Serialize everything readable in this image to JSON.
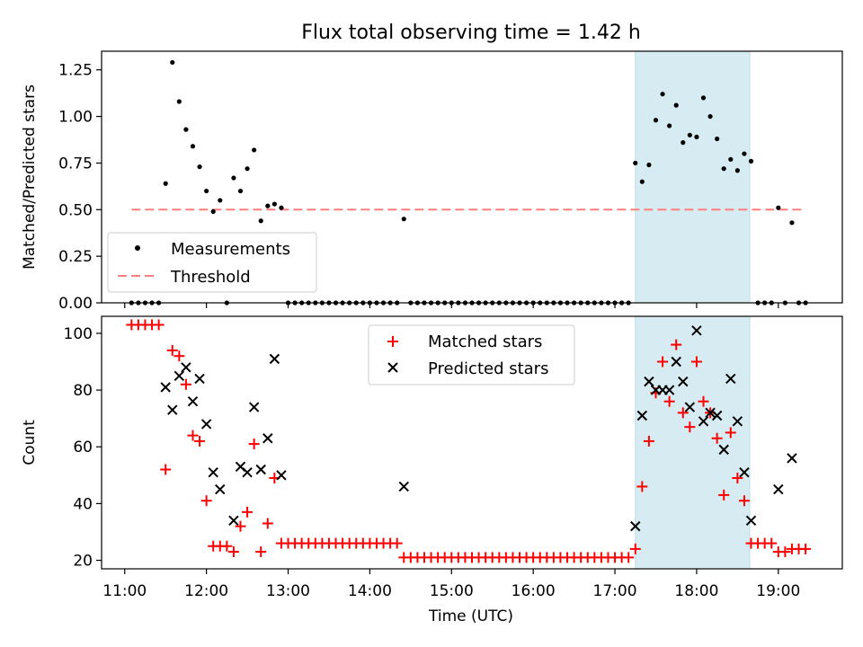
{
  "title": "Flux total observing time = 1.42 h",
  "chart_data": [
    {
      "type": "scatter",
      "title": "Flux total observing time = 1.42 h",
      "xlabel": "",
      "ylabel": "Matched/Predicted stars",
      "xlim": [
        "10:43",
        "19:47"
      ],
      "ylim": [
        0,
        1.35
      ],
      "xticks": [
        "11:00",
        "12:00",
        "13:00",
        "14:00",
        "15:00",
        "16:00",
        "17:00",
        "18:00",
        "19:00"
      ],
      "yticks": [
        "0.00",
        "0.25",
        "0.50",
        "0.75",
        "1.00",
        "1.25"
      ],
      "highlight_span": [
        "17:15",
        "18:39"
      ],
      "legend": {
        "position": "lower-left",
        "entries": [
          "Measurements",
          "Threshold"
        ]
      },
      "threshold": {
        "name": "Threshold",
        "y": 0.5,
        "x": [
          "11:05",
          "19:20"
        ],
        "color": "#ff7f7f",
        "style": "dashed"
      },
      "series": [
        {
          "name": "Measurements",
          "color": "#000000",
          "marker": "dot",
          "points": [
            [
              "11:05",
              0
            ],
            [
              "11:10",
              0
            ],
            [
              "11:15",
              0
            ],
            [
              "11:20",
              0
            ],
            [
              "11:25",
              0
            ],
            [
              "11:30",
              0.64
            ],
            [
              "11:35",
              1.29
            ],
            [
              "11:40",
              1.08
            ],
            [
              "11:45",
              0.93
            ],
            [
              "11:50",
              0.84
            ],
            [
              "11:55",
              0.73
            ],
            [
              "12:00",
              0.6
            ],
            [
              "12:05",
              0.49
            ],
            [
              "12:10",
              0.55
            ],
            [
              "12:15",
              0
            ],
            [
              "12:20",
              0.67
            ],
            [
              "12:25",
              0.6
            ],
            [
              "12:30",
              0.72
            ],
            [
              "12:35",
              0.82
            ],
            [
              "12:40",
              0.44
            ],
            [
              "12:45",
              0.52
            ],
            [
              "12:50",
              0.53
            ],
            [
              "12:55",
              0.51
            ],
            [
              "13:00",
              0
            ],
            [
              "13:05",
              0
            ],
            [
              "13:10",
              0
            ],
            [
              "13:15",
              0
            ],
            [
              "13:20",
              0
            ],
            [
              "13:25",
              0
            ],
            [
              "13:30",
              0
            ],
            [
              "13:35",
              0
            ],
            [
              "13:40",
              0
            ],
            [
              "13:45",
              0
            ],
            [
              "13:50",
              0
            ],
            [
              "13:55",
              0
            ],
            [
              "14:00",
              0
            ],
            [
              "14:05",
              0
            ],
            [
              "14:10",
              0
            ],
            [
              "14:15",
              0
            ],
            [
              "14:20",
              0
            ],
            [
              "14:25",
              0.45
            ],
            [
              "14:30",
              0
            ],
            [
              "14:35",
              0
            ],
            [
              "14:40",
              0
            ],
            [
              "14:45",
              0
            ],
            [
              "14:50",
              0
            ],
            [
              "14:55",
              0
            ],
            [
              "15:00",
              0
            ],
            [
              "15:05",
              0
            ],
            [
              "15:10",
              0
            ],
            [
              "15:15",
              0
            ],
            [
              "15:20",
              0
            ],
            [
              "15:25",
              0
            ],
            [
              "15:30",
              0
            ],
            [
              "15:35",
              0
            ],
            [
              "15:40",
              0
            ],
            [
              "15:45",
              0
            ],
            [
              "15:50",
              0
            ],
            [
              "15:55",
              0
            ],
            [
              "16:00",
              0
            ],
            [
              "16:05",
              0
            ],
            [
              "16:10",
              0
            ],
            [
              "16:15",
              0
            ],
            [
              "16:20",
              0
            ],
            [
              "16:25",
              0
            ],
            [
              "16:30",
              0
            ],
            [
              "16:35",
              0
            ],
            [
              "16:40",
              0
            ],
            [
              "16:45",
              0
            ],
            [
              "16:50",
              0
            ],
            [
              "16:55",
              0
            ],
            [
              "17:00",
              0
            ],
            [
              "17:05",
              0
            ],
            [
              "17:10",
              0
            ],
            [
              "17:15",
              0.75
            ],
            [
              "17:20",
              0.65
            ],
            [
              "17:25",
              0.74
            ],
            [
              "17:30",
              0.98
            ],
            [
              "17:35",
              1.12
            ],
            [
              "17:40",
              0.95
            ],
            [
              "17:45",
              1.06
            ],
            [
              "17:50",
              0.86
            ],
            [
              "17:55",
              0.9
            ],
            [
              "18:00",
              0.89
            ],
            [
              "18:05",
              1.1
            ],
            [
              "18:10",
              1.0
            ],
            [
              "18:15",
              0.88
            ],
            [
              "18:20",
              0.72
            ],
            [
              "18:25",
              0.77
            ],
            [
              "18:30",
              0.71
            ],
            [
              "18:35",
              0.8
            ],
            [
              "18:40",
              0.76
            ],
            [
              "18:45",
              0
            ],
            [
              "18:50",
              0
            ],
            [
              "18:55",
              0
            ],
            [
              "19:00",
              0.51
            ],
            [
              "19:05",
              0
            ],
            [
              "19:10",
              0.43
            ],
            [
              "19:15",
              0
            ],
            [
              "19:20",
              0
            ]
          ]
        }
      ]
    },
    {
      "type": "scatter",
      "title": "",
      "xlabel": "Time (UTC)",
      "ylabel": "Count",
      "xlim": [
        "10:43",
        "19:47"
      ],
      "ylim": [
        17,
        106
      ],
      "xticks": [
        "11:00",
        "12:00",
        "13:00",
        "14:00",
        "15:00",
        "16:00",
        "17:00",
        "18:00",
        "19:00"
      ],
      "yticks": [
        "20",
        "40",
        "60",
        "80",
        "100"
      ],
      "highlight_span": [
        "17:15",
        "18:39"
      ],
      "legend": {
        "position": "upper-center",
        "entries": [
          "Matched stars",
          "Predicted stars"
        ]
      },
      "series": [
        {
          "name": "Matched stars",
          "color": "#ff0000",
          "marker": "plus",
          "points": [
            [
              "11:05",
              103
            ],
            [
              "11:10",
              103
            ],
            [
              "11:15",
              103
            ],
            [
              "11:20",
              103
            ],
            [
              "11:25",
              103
            ],
            [
              "11:30",
              52
            ],
            [
              "11:35",
              94
            ],
            [
              "11:40",
              92
            ],
            [
              "11:45",
              82
            ],
            [
              "11:50",
              64
            ],
            [
              "11:55",
              62
            ],
            [
              "12:00",
              41
            ],
            [
              "12:05",
              25
            ],
            [
              "12:10",
              25
            ],
            [
              "12:15",
              25
            ],
            [
              "12:20",
              23
            ],
            [
              "12:25",
              32
            ],
            [
              "12:30",
              37
            ],
            [
              "12:35",
              61
            ],
            [
              "12:40",
              23
            ],
            [
              "12:45",
              33
            ],
            [
              "12:50",
              49
            ],
            [
              "12:55",
              26
            ],
            [
              "13:00",
              26
            ],
            [
              "13:05",
              26
            ],
            [
              "13:10",
              26
            ],
            [
              "13:15",
              26
            ],
            [
              "13:20",
              26
            ],
            [
              "13:25",
              26
            ],
            [
              "13:30",
              26
            ],
            [
              "13:35",
              26
            ],
            [
              "13:40",
              26
            ],
            [
              "13:45",
              26
            ],
            [
              "13:50",
              26
            ],
            [
              "13:55",
              26
            ],
            [
              "14:00",
              26
            ],
            [
              "14:05",
              26
            ],
            [
              "14:10",
              26
            ],
            [
              "14:15",
              26
            ],
            [
              "14:20",
              26
            ],
            [
              "14:25",
              21
            ],
            [
              "14:30",
              21
            ],
            [
              "14:35",
              21
            ],
            [
              "14:40",
              21
            ],
            [
              "14:45",
              21
            ],
            [
              "14:50",
              21
            ],
            [
              "14:55",
              21
            ],
            [
              "15:00",
              21
            ],
            [
              "15:05",
              21
            ],
            [
              "15:10",
              21
            ],
            [
              "15:15",
              21
            ],
            [
              "15:20",
              21
            ],
            [
              "15:25",
              21
            ],
            [
              "15:30",
              21
            ],
            [
              "15:35",
              21
            ],
            [
              "15:40",
              21
            ],
            [
              "15:45",
              21
            ],
            [
              "15:50",
              21
            ],
            [
              "15:55",
              21
            ],
            [
              "16:00",
              21
            ],
            [
              "16:05",
              21
            ],
            [
              "16:10",
              21
            ],
            [
              "16:15",
              21
            ],
            [
              "16:20",
              21
            ],
            [
              "16:25",
              21
            ],
            [
              "16:30",
              21
            ],
            [
              "16:35",
              21
            ],
            [
              "16:40",
              21
            ],
            [
              "16:45",
              21
            ],
            [
              "16:50",
              21
            ],
            [
              "16:55",
              21
            ],
            [
              "17:00",
              21
            ],
            [
              "17:05",
              21
            ],
            [
              "17:10",
              21
            ],
            [
              "17:15",
              24
            ],
            [
              "17:20",
              46
            ],
            [
              "17:25",
              62
            ],
            [
              "17:30",
              79
            ],
            [
              "17:35",
              90
            ],
            [
              "17:40",
              76
            ],
            [
              "17:45",
              96
            ],
            [
              "17:50",
              72
            ],
            [
              "17:55",
              67
            ],
            [
              "18:00",
              90
            ],
            [
              "18:05",
              76
            ],
            [
              "18:10",
              72
            ],
            [
              "18:15",
              63
            ],
            [
              "18:20",
              43
            ],
            [
              "18:25",
              65
            ],
            [
              "18:30",
              49
            ],
            [
              "18:35",
              41
            ],
            [
              "18:40",
              26
            ],
            [
              "18:45",
              26
            ],
            [
              "18:50",
              26
            ],
            [
              "18:55",
              26
            ],
            [
              "19:00",
              23
            ],
            [
              "19:05",
              23
            ],
            [
              "19:10",
              24
            ],
            [
              "19:15",
              24
            ],
            [
              "19:20",
              24
            ]
          ]
        },
        {
          "name": "Predicted stars",
          "color": "#000000",
          "marker": "x",
          "points": [
            [
              "11:30",
              81
            ],
            [
              "11:35",
              73
            ],
            [
              "11:40",
              85
            ],
            [
              "11:45",
              88
            ],
            [
              "11:50",
              76
            ],
            [
              "11:55",
              84
            ],
            [
              "12:00",
              68
            ],
            [
              "12:05",
              51
            ],
            [
              "12:10",
              45
            ],
            [
              "12:20",
              34
            ],
            [
              "12:25",
              53
            ],
            [
              "12:30",
              51
            ],
            [
              "12:35",
              74
            ],
            [
              "12:40",
              52
            ],
            [
              "12:45",
              63
            ],
            [
              "12:50",
              91
            ],
            [
              "12:55",
              50
            ],
            [
              "14:25",
              46
            ],
            [
              "17:15",
              32
            ],
            [
              "17:20",
              71
            ],
            [
              "17:25",
              83
            ],
            [
              "17:30",
              80
            ],
            [
              "17:35",
              80
            ],
            [
              "17:40",
              80
            ],
            [
              "17:45",
              90
            ],
            [
              "17:50",
              83
            ],
            [
              "17:55",
              74
            ],
            [
              "18:00",
              101
            ],
            [
              "18:05",
              69
            ],
            [
              "18:10",
              72
            ],
            [
              "18:15",
              71
            ],
            [
              "18:20",
              59
            ],
            [
              "18:25",
              84
            ],
            [
              "18:30",
              69
            ],
            [
              "18:35",
              51
            ],
            [
              "18:40",
              34
            ],
            [
              "19:00",
              45
            ],
            [
              "19:10",
              56
            ]
          ]
        }
      ]
    }
  ]
}
